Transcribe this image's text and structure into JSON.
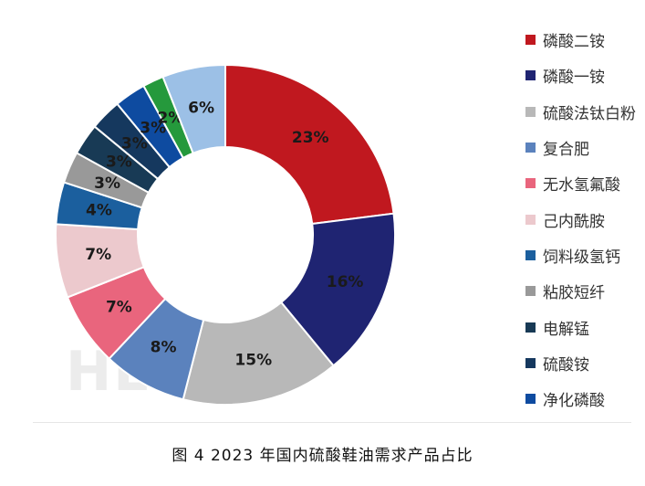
{
  "watermark": "HEM",
  "caption": "图 4  2023 年国内硫酸鞋油需求产品占比",
  "chart_data": {
    "type": "pie",
    "variant": "donut",
    "start": "top, clockwise",
    "legend_position": "right",
    "series": [
      {
        "name": "磷酸二铵",
        "value": 23,
        "label": "23%",
        "color": "#c0181f"
      },
      {
        "name": "磷酸一铵",
        "value": 16,
        "label": "16%",
        "color": "#1f2472"
      },
      {
        "name": "硫酸法钛白粉",
        "value": 15,
        "label": "15%",
        "color": "#b8b8b8"
      },
      {
        "name": "复合肥",
        "value": 8,
        "label": "8%",
        "color": "#5b82bd"
      },
      {
        "name": "无水氢氟酸",
        "value": 7,
        "label": "7%",
        "color": "#e9657d"
      },
      {
        "name": "己内酰胺",
        "value": 7,
        "label": "7%",
        "color": "#ecc9cd"
      },
      {
        "name": "饲料级氢钙",
        "value": 4,
        "label": "4%",
        "color": "#1b5f9e"
      },
      {
        "name": "粘胶短纤",
        "value": 3,
        "label": "3%",
        "color": "#999999"
      },
      {
        "name": "电解锰",
        "value": 3,
        "label": "3%",
        "color": "#183a55"
      },
      {
        "name": "硫酸铵",
        "value": 3,
        "label": "3%",
        "color": "#15385e"
      },
      {
        "name": "净化磷酸",
        "value": 3,
        "label": "3%",
        "color": "#0e4ba0"
      },
      {
        "name": "",
        "value": 2,
        "label": "2%",
        "color": "#25993c"
      },
      {
        "name": "",
        "value": 6,
        "label": "6%",
        "color": "#9cc0e6"
      }
    ]
  }
}
